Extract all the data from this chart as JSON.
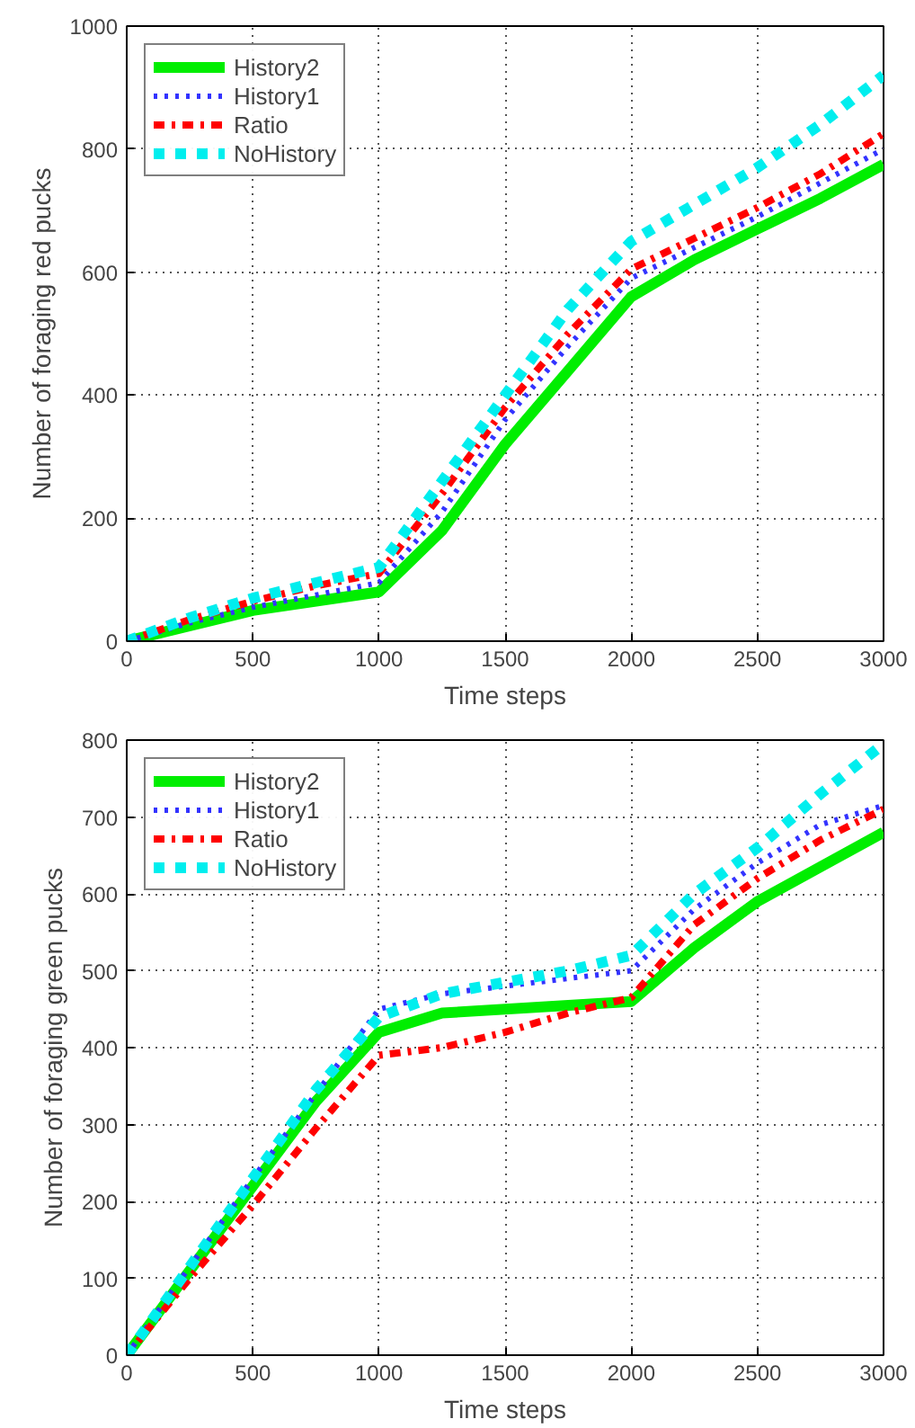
{
  "chart_data": [
    {
      "type": "line",
      "xlabel": "Time steps",
      "ylabel": "Number of foraging red pucks",
      "x": [
        0,
        250,
        500,
        750,
        1000,
        1250,
        1500,
        1750,
        2000,
        2250,
        2500,
        2750,
        3000
      ],
      "xlim": [
        0,
        3000
      ],
      "ylim": [
        0,
        1000
      ],
      "xticks": [
        0,
        500,
        1000,
        1500,
        2000,
        2500,
        3000
      ],
      "yticks": [
        0,
        200,
        400,
        600,
        800,
        1000
      ],
      "grid": true,
      "legend": "top left",
      "series": [
        {
          "name": "History2",
          "color": "#00ee00",
          "line_style": "solid",
          "values": [
            0,
            25,
            50,
            65,
            80,
            180,
            320,
            440,
            560,
            620,
            670,
            720,
            775
          ]
        },
        {
          "name": "History1",
          "color": "#3333ff",
          "line_style": "dotted",
          "values": [
            0,
            30,
            55,
            75,
            95,
            210,
            360,
            480,
            590,
            640,
            690,
            745,
            800
          ]
        },
        {
          "name": "Ratio",
          "color": "#ff0000",
          "line_style": "dashdot",
          "values": [
            0,
            35,
            65,
            90,
            110,
            240,
            380,
            500,
            605,
            655,
            705,
            760,
            825
          ]
        },
        {
          "name": "NoHistory",
          "color": "#00eeee",
          "line_style": "dashed",
          "values": [
            0,
            38,
            70,
            95,
            120,
            260,
            400,
            540,
            650,
            710,
            770,
            840,
            920
          ]
        }
      ]
    },
    {
      "type": "line",
      "xlabel": "Time steps",
      "ylabel": "Number of foraging green pucks",
      "x": [
        0,
        250,
        500,
        750,
        1000,
        1250,
        1500,
        1750,
        2000,
        2250,
        2500,
        2750,
        3000
      ],
      "xlim": [
        0,
        3000
      ],
      "ylim": [
        0,
        800
      ],
      "xticks": [
        0,
        500,
        1000,
        1500,
        2000,
        2500,
        3000
      ],
      "yticks": [
        0,
        100,
        200,
        300,
        400,
        500,
        600,
        700,
        800
      ],
      "grid": true,
      "legend": "top left",
      "series": [
        {
          "name": "History2",
          "color": "#00ee00",
          "line_style": "solid",
          "values": [
            0,
            110,
            220,
            330,
            420,
            445,
            450,
            455,
            460,
            530,
            590,
            635,
            680
          ]
        },
        {
          "name": "History1",
          "color": "#3333ff",
          "line_style": "dotted",
          "values": [
            0,
            115,
            230,
            340,
            450,
            470,
            480,
            490,
            500,
            580,
            640,
            690,
            715
          ]
        },
        {
          "name": "Ratio",
          "color": "#ff0000",
          "line_style": "dashdot",
          "values": [
            0,
            100,
            195,
            295,
            390,
            400,
            420,
            445,
            465,
            560,
            620,
            670,
            710
          ]
        },
        {
          "name": "NoHistory",
          "color": "#00eeee",
          "line_style": "dashed",
          "values": [
            0,
            115,
            230,
            345,
            440,
            470,
            485,
            500,
            520,
            600,
            660,
            730,
            795
          ]
        }
      ]
    }
  ]
}
